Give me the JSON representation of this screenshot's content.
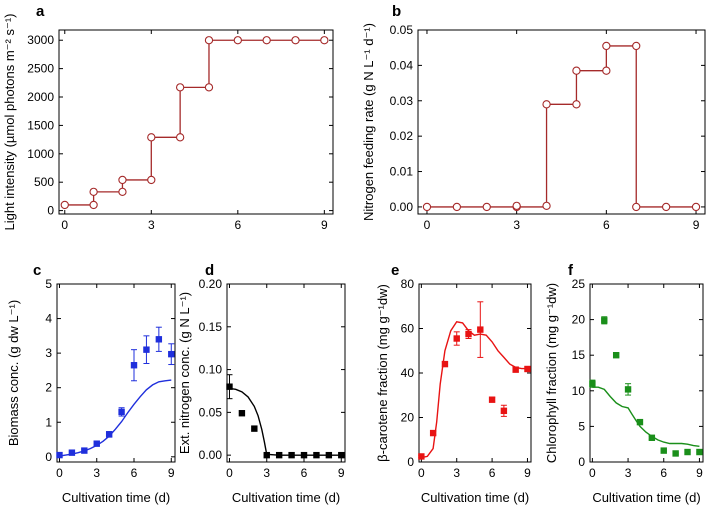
{
  "chart_data": [
    {
      "id": "a",
      "type": "step",
      "panel_label": "a",
      "xlabel": "",
      "ylabel": "Light intensity (µmol photons m⁻² s⁻¹)",
      "xlim": [
        -0.2,
        9.3
      ],
      "ylim": [
        -60,
        3180
      ],
      "xticks": [
        0,
        3,
        6,
        9
      ],
      "yticks": [
        0,
        500,
        1000,
        1500,
        2000,
        2500,
        3000
      ],
      "color": "#a52a2a",
      "x": [
        0,
        1,
        2,
        3,
        4,
        5,
        6,
        7,
        8,
        9
      ],
      "values": [
        100,
        330,
        540,
        1290,
        2170,
        3000,
        3000,
        3000,
        3000,
        3000
      ],
      "markers": [
        [
          0,
          100
        ],
        [
          1,
          100
        ],
        [
          1,
          330
        ],
        [
          2,
          330
        ],
        [
          2,
          540
        ],
        [
          3,
          540
        ],
        [
          3,
          1290
        ],
        [
          4,
          1290
        ],
        [
          4,
          2170
        ],
        [
          5,
          2170
        ],
        [
          5,
          3000
        ],
        [
          6,
          3000
        ],
        [
          7,
          3000
        ],
        [
          8,
          3000
        ],
        [
          9,
          3000
        ]
      ]
    },
    {
      "id": "b",
      "type": "step",
      "panel_label": "b",
      "xlabel": "",
      "ylabel": "Nitrogen feeding rate (g N L⁻¹ d⁻¹)",
      "xlim": [
        -0.3,
        9.3
      ],
      "ylim": [
        -0.002,
        0.05
      ],
      "xticks": [
        0,
        3,
        6,
        9
      ],
      "yticks": [
        0.0,
        0.01,
        0.02,
        0.03,
        0.04,
        0.05
      ],
      "ytick_labels": [
        "0.00",
        "0.01",
        "0.02",
        "0.03",
        "0.04",
        "0.05"
      ],
      "color": "#a52a2a",
      "x": [
        0,
        1,
        2,
        3,
        4,
        5,
        6,
        7,
        8,
        9
      ],
      "values": [
        0,
        0,
        0,
        0,
        0.029,
        0.0385,
        0.0455,
        0,
        0,
        0
      ],
      "markers": [
        [
          0,
          0
        ],
        [
          1,
          0
        ],
        [
          2,
          0
        ],
        [
          3,
          0
        ],
        [
          3,
          0.0003
        ],
        [
          4,
          0.0003
        ],
        [
          4,
          0.029
        ],
        [
          5,
          0.029
        ],
        [
          5,
          0.0385
        ],
        [
          6,
          0.0385
        ],
        [
          6,
          0.0455
        ],
        [
          7,
          0.0455
        ],
        [
          7,
          0
        ],
        [
          8,
          0
        ],
        [
          9,
          0
        ]
      ]
    },
    {
      "id": "c",
      "type": "scatter+line",
      "panel_label": "c",
      "xlabel": "Cultivation time (d)",
      "ylabel": "Biomass conc. (g dw L⁻¹)",
      "xlim": [
        -0.2,
        9.3
      ],
      "ylim": [
        -0.15,
        5
      ],
      "xticks": [
        0,
        3,
        6,
        9
      ],
      "yticks": [
        0,
        1,
        2,
        3,
        4,
        5
      ],
      "color": "#1f2fdc",
      "points": [
        {
          "x": 0,
          "y": 0.05,
          "err": 0.04
        },
        {
          "x": 1,
          "y": 0.12,
          "err": 0.04
        },
        {
          "x": 2,
          "y": 0.18,
          "err": 0.04
        },
        {
          "x": 3,
          "y": 0.38,
          "err": 0.06
        },
        {
          "x": 4,
          "y": 0.65,
          "err": 0.08
        },
        {
          "x": 5,
          "y": 1.3,
          "err": 0.12
        },
        {
          "x": 6,
          "y": 2.65,
          "err": 0.45
        },
        {
          "x": 7,
          "y": 3.1,
          "err": 0.4
        },
        {
          "x": 8,
          "y": 3.4,
          "err": 0.35
        },
        {
          "x": 9,
          "y": 2.97,
          "err": 0.3
        }
      ],
      "model": {
        "x": [
          0,
          0.5,
          1,
          1.5,
          2,
          2.5,
          3,
          3.5,
          4,
          4.5,
          5,
          5.5,
          6,
          6.5,
          7,
          7.5,
          8,
          8.5,
          9
        ],
        "y": [
          0.02,
          0.05,
          0.08,
          0.12,
          0.17,
          0.24,
          0.33,
          0.45,
          0.6,
          0.8,
          1.02,
          1.28,
          1.52,
          1.74,
          1.94,
          2.08,
          2.17,
          2.2,
          2.22
        ]
      }
    },
    {
      "id": "d",
      "type": "scatter+line",
      "panel_label": "d",
      "xlabel": "Cultivation time (d)",
      "ylabel": "Ext. nitrogen conc. (g N L⁻¹)",
      "xlim": [
        -0.2,
        9.3
      ],
      "ylim": [
        -0.008,
        0.2
      ],
      "xticks": [
        0,
        3,
        6,
        9
      ],
      "yticks": [
        0.0,
        0.05,
        0.1,
        0.15,
        0.2
      ],
      "ytick_labels": [
        "0.00",
        "0.05",
        "0.10",
        "0.15",
        "0.20"
      ],
      "color": "#000000",
      "points": [
        {
          "x": 0,
          "y": 0.08,
          "err": 0.014
        },
        {
          "x": 1,
          "y": 0.049,
          "err": 0
        },
        {
          "x": 2,
          "y": 0.031,
          "err": 0
        },
        {
          "x": 3,
          "y": 0.0,
          "err": 0
        },
        {
          "x": 4,
          "y": 0.0,
          "err": 0
        },
        {
          "x": 5,
          "y": 0.0,
          "err": 0
        },
        {
          "x": 6,
          "y": 0.0,
          "err": 0
        },
        {
          "x": 7,
          "y": 0.0,
          "err": 0
        },
        {
          "x": 8,
          "y": 0.0,
          "err": 0
        },
        {
          "x": 9,
          "y": 0.0,
          "err": 0
        }
      ],
      "model": {
        "x": [
          0,
          0.5,
          1,
          1.5,
          2,
          2.3,
          2.6,
          2.8,
          3,
          4,
          5,
          6,
          7,
          8,
          9
        ],
        "y": [
          0.078,
          0.077,
          0.074,
          0.068,
          0.057,
          0.046,
          0.03,
          0.016,
          0.001,
          0,
          0,
          0,
          0,
          0,
          0
        ]
      }
    },
    {
      "id": "e",
      "type": "scatter+line",
      "panel_label": "e",
      "xlabel": "Cultivation time (d)",
      "ylabel": "β-carotene fraction (mg g⁻¹dw)",
      "xlim": [
        -0.2,
        9.3
      ],
      "ylim": [
        0,
        80
      ],
      "xticks": [
        0,
        3,
        6,
        9
      ],
      "yticks": [
        0,
        20,
        40,
        60,
        80
      ],
      "color": "#e81313",
      "points": [
        {
          "x": 0,
          "y": 2.5,
          "err": 0.5
        },
        {
          "x": 1,
          "y": 13,
          "err": 0.8
        },
        {
          "x": 2,
          "y": 44,
          "err": 1
        },
        {
          "x": 3,
          "y": 55.5,
          "err": 3
        },
        {
          "x": 4,
          "y": 57.5,
          "err": 2
        },
        {
          "x": 5,
          "y": 59.5,
          "err": 12.5
        },
        {
          "x": 6,
          "y": 28,
          "err": 1
        },
        {
          "x": 7,
          "y": 23,
          "err": 2.5
        },
        {
          "x": 8,
          "y": 41.5,
          "err": 1
        },
        {
          "x": 9,
          "y": 41.8,
          "err": 1
        }
      ],
      "model": {
        "x": [
          0,
          0.5,
          1,
          1.3,
          1.6,
          2,
          2.5,
          3,
          3.5,
          4,
          4.5,
          5,
          5.5,
          6,
          6.5,
          7,
          7.5,
          8,
          8.5,
          9
        ],
        "y": [
          2,
          2.5,
          6,
          18,
          35,
          50,
          59,
          63,
          62.5,
          59,
          57,
          57.5,
          57,
          54,
          50,
          47,
          44,
          42.5,
          42,
          42
        ]
      }
    },
    {
      "id": "f",
      "type": "scatter+line",
      "panel_label": "f",
      "xlabel": "Cultivation time (d)",
      "ylabel": "Chlorophyll fraction (mg g⁻¹dw)",
      "xlim": [
        -0.2,
        9.3
      ],
      "ylim": [
        0,
        25
      ],
      "xticks": [
        0,
        3,
        6,
        9
      ],
      "yticks": [
        0,
        5,
        10,
        15,
        20,
        25
      ],
      "color": "#1a8f1a",
      "points": [
        {
          "x": 0,
          "y": 11,
          "err": 0.5
        },
        {
          "x": 1,
          "y": 19.9,
          "err": 0.5
        },
        {
          "x": 2,
          "y": 15,
          "err": 0.2
        },
        {
          "x": 3,
          "y": 10.2,
          "err": 0.8
        },
        {
          "x": 4,
          "y": 5.6,
          "err": 0.3
        },
        {
          "x": 5,
          "y": 3.4,
          "err": 0.2
        },
        {
          "x": 6,
          "y": 1.6,
          "err": 0.1
        },
        {
          "x": 7,
          "y": 1.2,
          "err": 0.1
        },
        {
          "x": 8,
          "y": 1.4,
          "err": 0.1
        },
        {
          "x": 9,
          "y": 1.4,
          "err": 0.1
        }
      ],
      "model": {
        "x": [
          0,
          0.5,
          1,
          1.5,
          2,
          2.5,
          3,
          3.3,
          3.6,
          4,
          4.5,
          5,
          5.5,
          6,
          6.5,
          7,
          7.5,
          8,
          8.5,
          9
        ],
        "y": [
          10.5,
          10.5,
          10.2,
          9.2,
          8.3,
          7.8,
          7.6,
          6.8,
          6.0,
          5.0,
          4.2,
          3.6,
          3.1,
          2.8,
          2.6,
          2.6,
          2.6,
          2.5,
          2.3,
          2.2
        ]
      }
    }
  ]
}
